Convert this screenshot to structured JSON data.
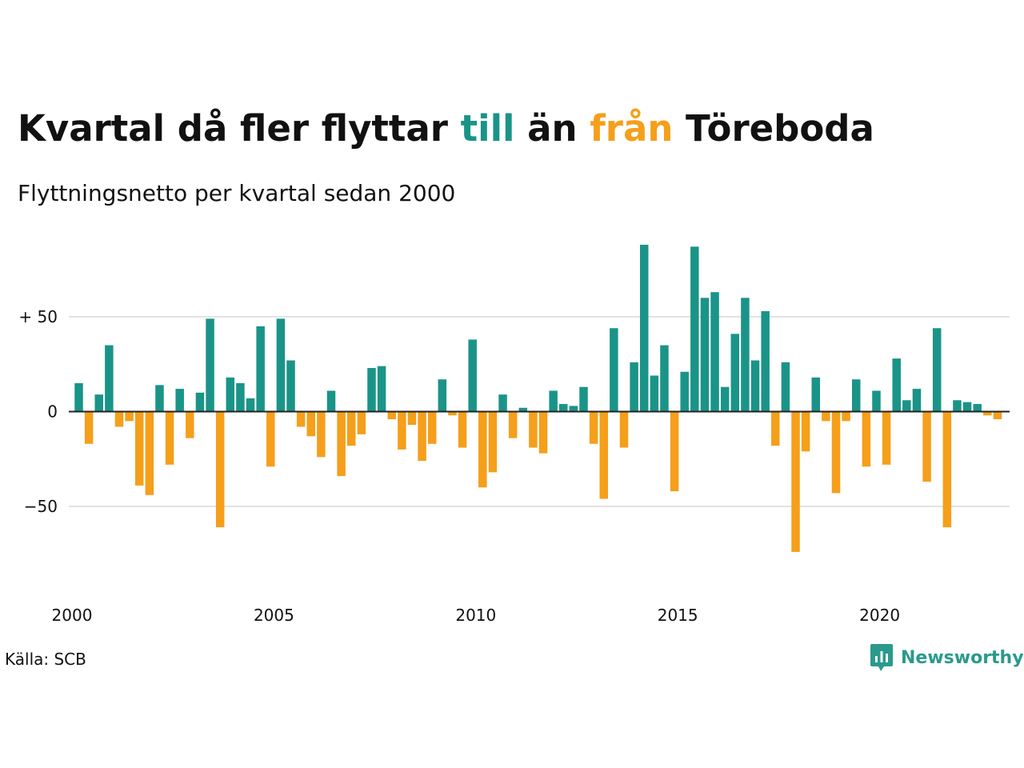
{
  "title": {
    "part1": "Kvartal då fler flyttar ",
    "till": "till",
    "part2": " än ",
    "fran": "från",
    "part3": " Töreboda"
  },
  "subtitle": "Flyttningsnetto per kvartal sedan 2000",
  "source": "Källa: SCB",
  "brand": "Newsworthy",
  "colors": {
    "positive": "#1a9488",
    "negative": "#f59f1b",
    "grid": "#e3e3e3",
    "zero_line": "#222222",
    "brand": "#2a9a8c"
  },
  "chart_data": {
    "type": "bar",
    "x_start": "2000 Q1",
    "x_ticks": [
      "2000",
      "2005",
      "2010",
      "2015",
      "2020"
    ],
    "y_ticks": [
      {
        "value": 50,
        "label": "+ 50"
      },
      {
        "value": 0,
        "label": "0"
      },
      {
        "value": -50,
        "label": "−50"
      }
    ],
    "ylim": [
      -95,
      90
    ],
    "grid": true,
    "values": [
      15,
      -17,
      9,
      35,
      -8,
      -5,
      -39,
      -44,
      14,
      -28,
      12,
      -14,
      10,
      49,
      -61,
      18,
      15,
      7,
      45,
      -29,
      49,
      27,
      -8,
      -13,
      -24,
      11,
      -34,
      -18,
      -12,
      23,
      24,
      -4,
      -20,
      -7,
      -26,
      -17,
      17,
      -2,
      -19,
      38,
      -40,
      -32,
      9,
      -14,
      2,
      -19,
      -22,
      11,
      4,
      3,
      13,
      -17,
      -46,
      44,
      -19,
      26,
      88,
      19,
      35,
      -42,
      21,
      87,
      60,
      63,
      13,
      41,
      60,
      27,
      53,
      -18,
      26,
      -74,
      -21,
      18,
      -5,
      -43,
      -5,
      17,
      -29,
      11,
      -28,
      28,
      6,
      12,
      -37,
      44,
      -61,
      6,
      5,
      4,
      -2,
      -4
    ]
  }
}
